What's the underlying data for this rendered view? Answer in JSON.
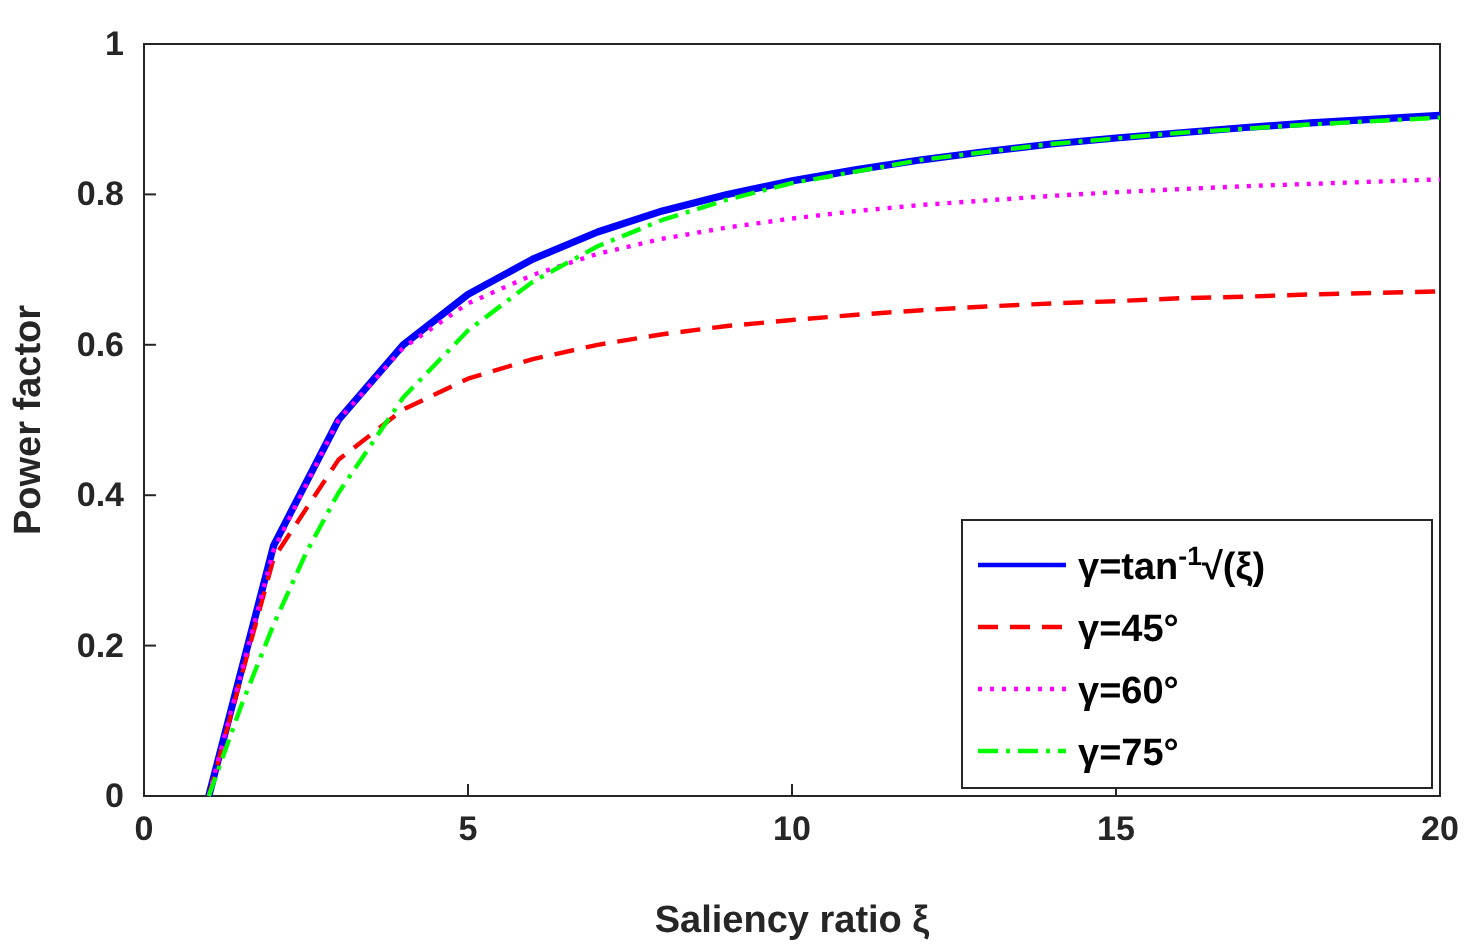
{
  "chart_data": {
    "type": "line",
    "xlabel": "Saliency ratio ξ",
    "ylabel": "Power factor",
    "xlim": [
      0,
      20
    ],
    "ylim": [
      0,
      1
    ],
    "xticks": [
      0,
      5,
      10,
      15,
      20
    ],
    "yticks": [
      0,
      0.2,
      0.4,
      0.6,
      0.8,
      1
    ],
    "grid": false,
    "legend": "bottom right",
    "series": [
      {
        "name": "γ=tan$^{-1}$√(ξ)",
        "color": "#0000ff",
        "line_style": "solid",
        "x": [
          1,
          2,
          3,
          4,
          5,
          6,
          7,
          8,
          9,
          10,
          11,
          12,
          13,
          14,
          15,
          16,
          17,
          18,
          19,
          20
        ],
        "values": [
          0,
          0.333,
          0.5,
          0.6,
          0.667,
          0.714,
          0.75,
          0.778,
          0.8,
          0.818,
          0.833,
          0.846,
          0.857,
          0.867,
          0.875,
          0.882,
          0.889,
          0.895,
          0.9,
          0.905
        ]
      },
      {
        "name": "γ=45°",
        "color": "#ff0000",
        "line_style": "dashed",
        "x": [
          1,
          2,
          3,
          4,
          5,
          6,
          7,
          8,
          9,
          10,
          11,
          12,
          13,
          14,
          15,
          16,
          17,
          18,
          19,
          20
        ],
        "values": [
          0,
          0.316,
          0.447,
          0.514,
          0.555,
          0.581,
          0.6,
          0.614,
          0.625,
          0.633,
          0.64,
          0.646,
          0.651,
          0.655,
          0.658,
          0.662,
          0.664,
          0.667,
          0.669,
          0.671
        ]
      },
      {
        "name": "γ=60°",
        "color": "#ff00ff",
        "line_style": "dotted",
        "x": [
          1,
          2,
          3,
          4,
          5,
          6,
          7,
          8,
          9,
          10,
          11,
          12,
          13,
          14,
          15,
          16,
          17,
          18,
          19,
          20
        ],
        "values": [
          0,
          0.327,
          0.5,
          0.596,
          0.655,
          0.693,
          0.721,
          0.741,
          0.756,
          0.768,
          0.778,
          0.786,
          0.792,
          0.798,
          0.803,
          0.807,
          0.811,
          0.814,
          0.817,
          0.82
        ]
      },
      {
        "name": "γ=75°",
        "color": "#00ff00",
        "line_style": "dashdot",
        "x": [
          1,
          1.5,
          2,
          2.5,
          3,
          4,
          5,
          6,
          7,
          8,
          9,
          10,
          12,
          14,
          16,
          18,
          20
        ],
        "values": [
          0,
          0.12,
          0.228,
          0.323,
          0.403,
          0.53,
          0.619,
          0.684,
          0.731,
          0.766,
          0.793,
          0.815,
          0.846,
          0.867,
          0.882,
          0.893,
          0.902
        ]
      }
    ]
  }
}
